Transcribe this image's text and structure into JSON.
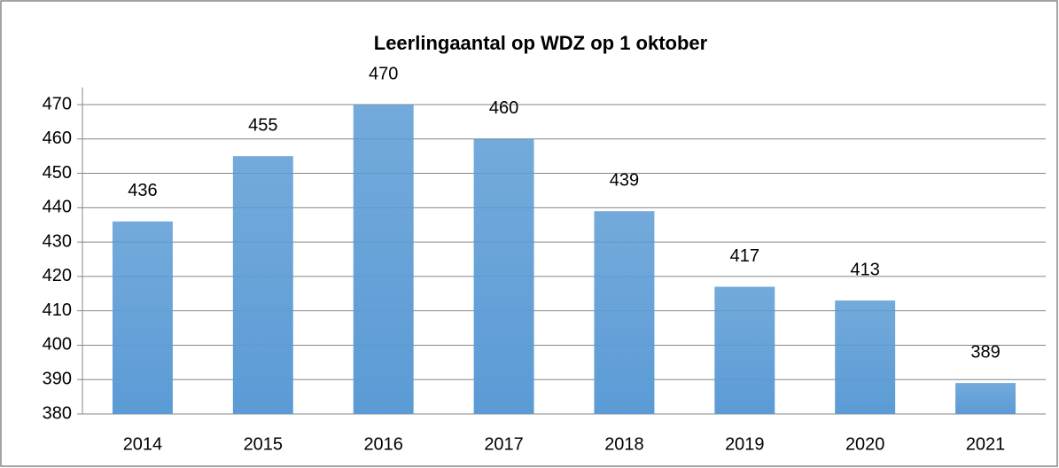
{
  "chart_data": {
    "type": "bar",
    "title": "Leerlingaantal op WDZ op 1 oktober",
    "categories": [
      "2014",
      "2015",
      "2016",
      "2017",
      "2018",
      "2019",
      "2020",
      "2021"
    ],
    "values": [
      436,
      455,
      470,
      460,
      439,
      417,
      413,
      389
    ],
    "color": "#5b9bd5",
    "ylim": [
      380,
      475
    ],
    "yticks": [
      380,
      390,
      400,
      410,
      420,
      430,
      440,
      450,
      460,
      470
    ],
    "grid": true
  }
}
